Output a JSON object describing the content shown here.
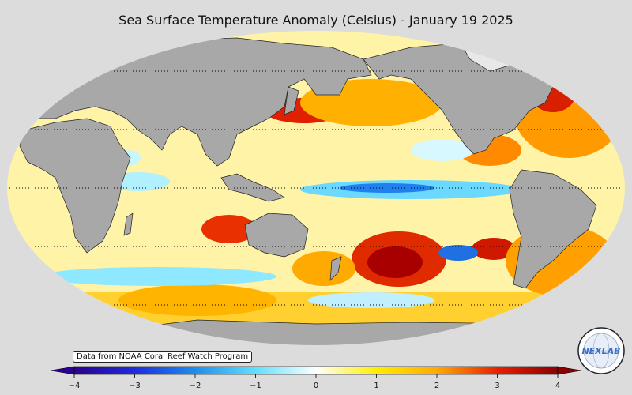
{
  "title": "Sea Surface Temperature Anomaly (Celsius) - January 19 2025",
  "credit": "Data from NOAA Coral Reef Watch Program",
  "logo": {
    "text": "NEXLAB",
    "icon": "nexlab-globe-logo"
  },
  "colorbar": {
    "min": -4,
    "max": 4,
    "ticks": [
      "−4",
      "−3",
      "−2",
      "−1",
      "0",
      "1",
      "2",
      "3",
      "4"
    ],
    "extend": "both",
    "colors": [
      "#2a0090",
      "#1f2bdc",
      "#1c8ef0",
      "#5fe0ff",
      "#ffffff",
      "#ffee00",
      "#ffaa00",
      "#e82000",
      "#8a0000"
    ]
  },
  "chart_data": {
    "type": "heatmap",
    "title": "Sea Surface Temperature Anomaly (Celsius) - January 19 2025",
    "projection": "Robinson",
    "colorbar_range": [
      -4,
      4
    ],
    "colorbar_label": "Celsius",
    "grid": "dotted latitude lines",
    "source": "Data from NOAA Coral Reef Watch Program",
    "land_color": "#a9a9a9",
    "ocean_background": "anomaly field"
  }
}
